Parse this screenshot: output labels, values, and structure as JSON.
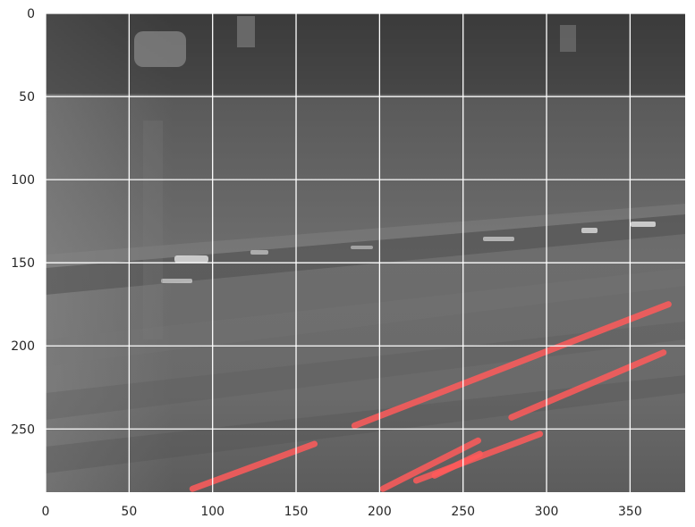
{
  "figure": {
    "description_free": true
  },
  "axes": {
    "x_ticks": [
      "0",
      "50",
      "100",
      "150",
      "200",
      "250",
      "300",
      "350"
    ],
    "y_ticks": [
      "0",
      "50",
      "100",
      "150",
      "200",
      "250"
    ],
    "xlim": [
      0,
      383
    ],
    "ylim": [
      288,
      0
    ],
    "grid": true
  },
  "colors": {
    "grid": "#ffffff",
    "overlay": "#ff5a5a",
    "image_dark": "#3a3a3a",
    "image_mid": "#6e6e6e",
    "image_light": "#8a8a8a"
  },
  "overlay_lines": [
    {
      "x": [
        185,
        373
      ],
      "y": [
        248,
        175
      ]
    },
    {
      "x": [
        279,
        370
      ],
      "y": [
        243,
        204
      ]
    },
    {
      "x": [
        88,
        161
      ],
      "y": [
        286,
        259
      ]
    },
    {
      "x": [
        202,
        259
      ],
      "y": [
        286,
        257
      ]
    },
    {
      "x": [
        222,
        296
      ],
      "y": [
        281,
        253
      ]
    },
    {
      "x": [
        233,
        260
      ],
      "y": [
        278,
        265
      ]
    }
  ]
}
